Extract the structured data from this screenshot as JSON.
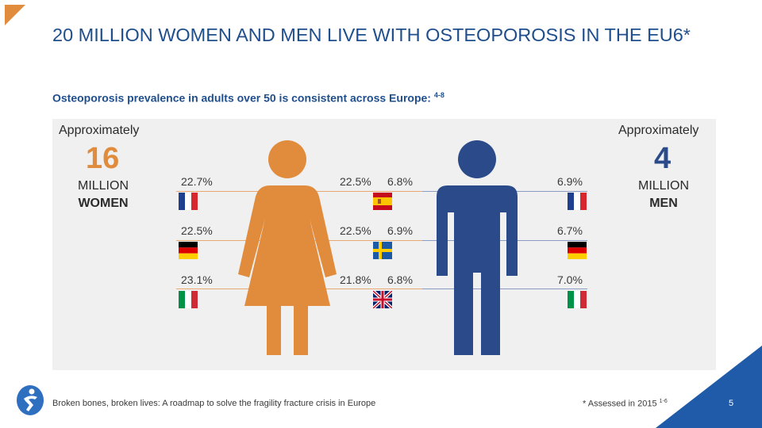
{
  "title": "20 MILLION WOMEN AND MEN LIVE WITH OSTEOPOROSIS IN THE EU6*",
  "subtitle": {
    "text": "Osteoporosis prevalence in adults over 50 is consistent across Europe:",
    "refs": "4-8"
  },
  "women": {
    "approx_label": "Approximately",
    "number": "16",
    "unit": "MILLION",
    "group": "WOMEN",
    "color": "#e08c3c"
  },
  "men": {
    "approx_label": "Approximately",
    "number": "4",
    "unit": "MILLION",
    "group": "MEN",
    "color": "#2b4a8a"
  },
  "rows": [
    {
      "women_left": "22.7%",
      "women_right": "22.5%",
      "men_left": "6.8%",
      "men_right": "6.9%",
      "left_flag": "france",
      "center_flag": "spain",
      "right_flag": "france"
    },
    {
      "women_left": "22.5%",
      "women_right": "22.5%",
      "men_left": "6.9%",
      "men_right": "6.7%",
      "left_flag": "germany",
      "center_flag": "sweden",
      "right_flag": "germany"
    },
    {
      "women_left": "23.1%",
      "women_right": "21.8%",
      "men_left": "6.8%",
      "men_right": "7.0%",
      "left_flag": "italy",
      "center_flag": "united-kingdom",
      "right_flag": "italy"
    }
  ],
  "footer": {
    "source": "Broken bones, broken lives: A roadmap to solve the fragility fracture crisis in Europe",
    "note": "* Assessed in 2015",
    "note_refs": "1-6",
    "page": "5"
  },
  "colors": {
    "accent": "#e08c3c",
    "brand_blue": "#1f4e8c",
    "men_blue": "#2b4a8a",
    "panel_bg": "#f0f0f0"
  }
}
